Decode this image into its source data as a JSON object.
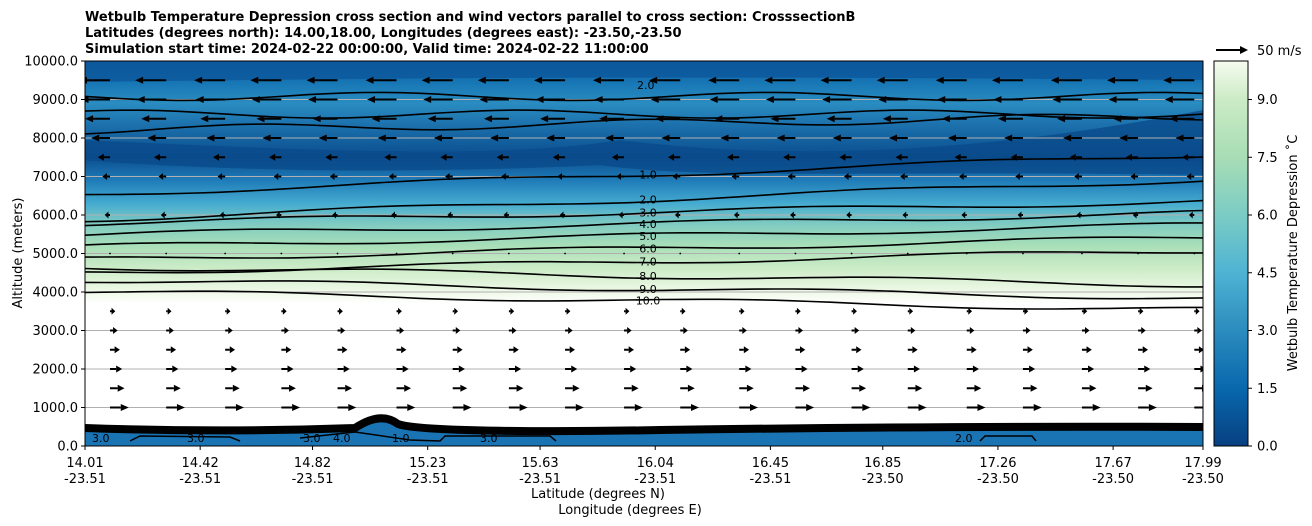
{
  "chart_data": {
    "type": "heatmap",
    "title_lines": [
      "Wetbulb Temperature Depression cross section and wind vectors parallel to cross section: CrosssectionB",
      "Latitudes (degrees north): 14.00,18.00, Longitudes (degrees east): -23.50,-23.50",
      "Simulation start time: 2024-02-22 00:00:00, Valid time: 2024-02-22 11:00:00"
    ],
    "xlabel": "Latitude (degrees N)",
    "xlabel2": "Longitude (degrees E)",
    "ylabel": "Altitude (meters)",
    "ylim": [
      0,
      10000
    ],
    "xlim": [
      14.01,
      17.99
    ],
    "y_ticks": [
      "0.0",
      "1000.0",
      "2000.0",
      "3000.0",
      "4000.0",
      "5000.0",
      "6000.0",
      "7000.0",
      "8000.0",
      "9000.0",
      "10000.0"
    ],
    "x_ticks": [
      {
        "lat": "14.01",
        "lon": "-23.51"
      },
      {
        "lat": "14.42",
        "lon": "-23.51"
      },
      {
        "lat": "14.82",
        "lon": "-23.51"
      },
      {
        "lat": "15.23",
        "lon": "-23.51"
      },
      {
        "lat": "15.63",
        "lon": "-23.51"
      },
      {
        "lat": "16.04",
        "lon": "-23.51"
      },
      {
        "lat": "16.45",
        "lon": "-23.51"
      },
      {
        "lat": "16.85",
        "lon": "-23.50"
      },
      {
        "lat": "17.26",
        "lon": "-23.50"
      },
      {
        "lat": "17.67",
        "lon": "-23.50"
      },
      {
        "lat": "17.99",
        "lon": "-23.50"
      }
    ],
    "colorbar": {
      "label": "Wetbulb Temperature Depression ˚C",
      "ticks": [
        "0.0",
        "1.5",
        "3.0",
        "4.5",
        "6.0",
        "7.5",
        "9.0"
      ],
      "range": [
        0,
        10
      ],
      "low_color": "#084081",
      "mid_color": "#4eb3d3",
      "high_color": "#f7fcf0"
    },
    "contour_levels": [
      {
        "level": 1.0,
        "label": "1.0",
        "alt_m": 7050
      },
      {
        "level": 2.0,
        "label": "2.0",
        "alt_m": 6400
      },
      {
        "level": 3.0,
        "label": "3.0",
        "alt_m": 6070
      },
      {
        "level": 4.0,
        "label": "4.0",
        "alt_m": 5770
      },
      {
        "level": 5.0,
        "label": "5.0",
        "alt_m": 5460
      },
      {
        "level": 6.0,
        "label": "6.0",
        "alt_m": 5130
      },
      {
        "level": 7.0,
        "label": "7.0",
        "alt_m": 4790
      },
      {
        "level": 8.0,
        "label": "8.0",
        "alt_m": 4420
      },
      {
        "level": 9.0,
        "label": "9.0",
        "alt_m": 4080
      },
      {
        "level": 10.0,
        "label": "10.0",
        "alt_m": 3780
      }
    ],
    "upper_contour_label": "2.0",
    "surface_labels": [
      "3.0",
      "3.0",
      "3.0",
      "4.0",
      "1.0",
      "3.0",
      "2.0"
    ],
    "wind_key": {
      "label": "50 m/s",
      "speed": 50
    },
    "wind_rows": [
      {
        "alt_m": 9500,
        "u": -15
      },
      {
        "alt_m": 9000,
        "u": -14
      },
      {
        "alt_m": 8500,
        "u": -11
      },
      {
        "alt_m": 8000,
        "u": -7
      },
      {
        "alt_m": 7500,
        "u": -4
      },
      {
        "alt_m": 7000,
        "u": -2
      },
      {
        "alt_m": 6000,
        "u": -1
      },
      {
        "alt_m": 5000,
        "u": 0
      },
      {
        "alt_m": 3500,
        "u": 1
      },
      {
        "alt_m": 3000,
        "u": 2
      },
      {
        "alt_m": 2500,
        "u": 3
      },
      {
        "alt_m": 2000,
        "u": 4
      },
      {
        "alt_m": 1500,
        "u": 5
      },
      {
        "alt_m": 1000,
        "u": 7
      }
    ],
    "wind_columns_lat": [
      14.01,
      14.21,
      14.42,
      14.62,
      14.82,
      15.03,
      15.23,
      15.43,
      15.63,
      15.84,
      16.04,
      16.25,
      16.45,
      16.65,
      16.85,
      17.06,
      17.26,
      17.47,
      17.67,
      17.87
    ],
    "grid": true
  }
}
